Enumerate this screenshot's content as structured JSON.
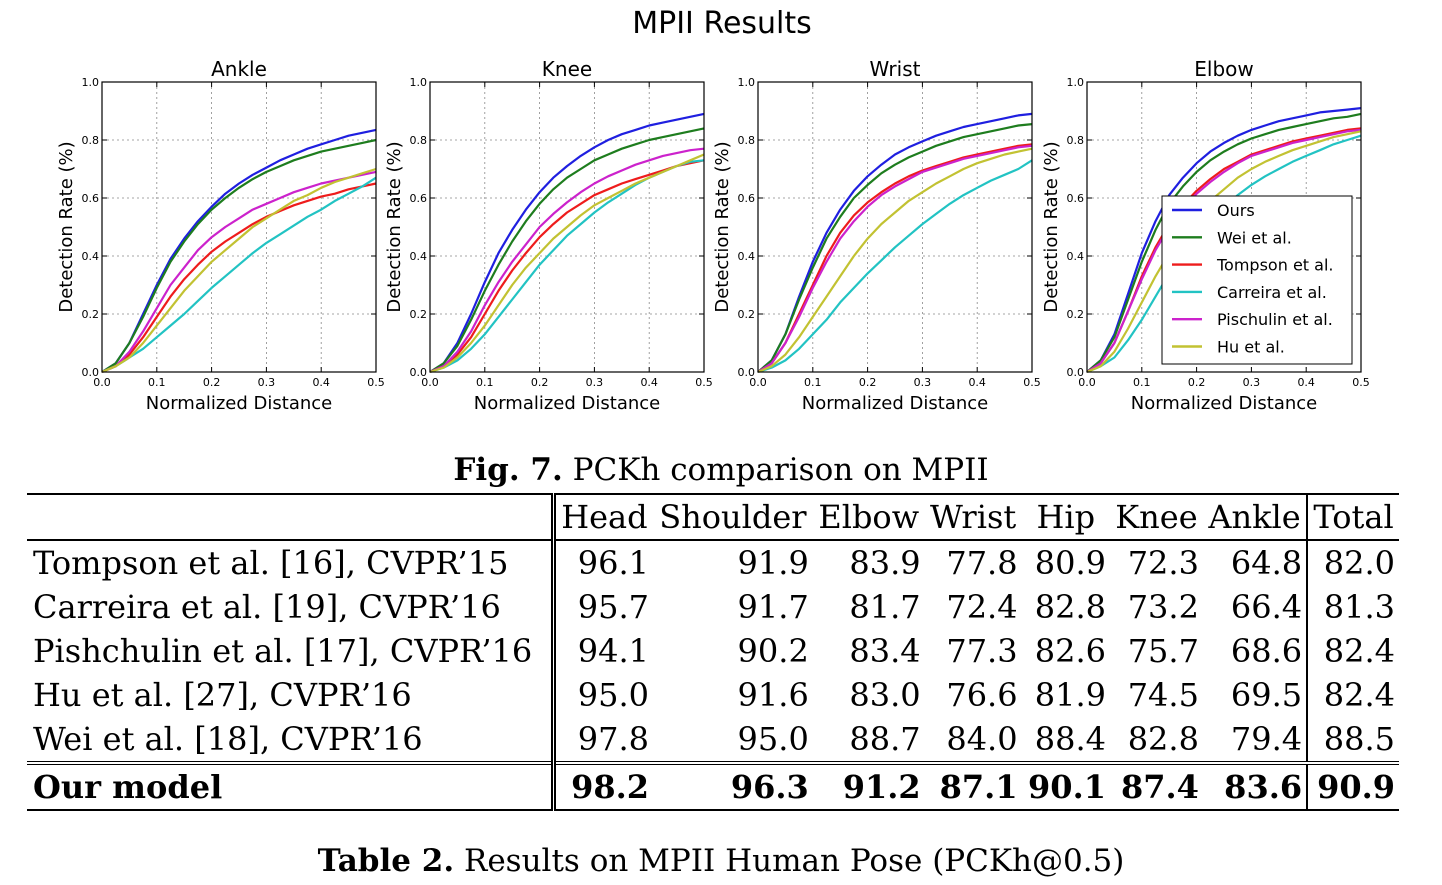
{
  "figure_title": "MPII Results",
  "chart_data": [
    {
      "type": "line",
      "title": "Ankle",
      "xlabel": "Normalized Distance",
      "ylabel": "Detection Rate (%)",
      "xlim": [
        0,
        0.5
      ],
      "ylim": [
        0,
        1.0
      ],
      "xticks": [
        "0.0",
        "0.1",
        "0.2",
        "0.3",
        "0.4",
        "0.5"
      ],
      "yticks": [
        "0.0",
        "0.2",
        "0.4",
        "0.6",
        "0.8",
        "1.0"
      ],
      "grid": true,
      "x": [
        0,
        0.025,
        0.05,
        0.075,
        0.1,
        0.125,
        0.15,
        0.175,
        0.2,
        0.225,
        0.25,
        0.275,
        0.3,
        0.325,
        0.35,
        0.375,
        0.4,
        0.425,
        0.45,
        0.475,
        0.5
      ],
      "series": [
        {
          "name": "Ours",
          "values": [
            0,
            0.03,
            0.1,
            0.2,
            0.3,
            0.39,
            0.46,
            0.52,
            0.57,
            0.615,
            0.65,
            0.68,
            0.705,
            0.73,
            0.75,
            0.77,
            0.785,
            0.8,
            0.815,
            0.825,
            0.835
          ]
        },
        {
          "name": "Wei et al.",
          "values": [
            0,
            0.03,
            0.1,
            0.19,
            0.29,
            0.38,
            0.45,
            0.51,
            0.56,
            0.6,
            0.635,
            0.665,
            0.69,
            0.71,
            0.73,
            0.745,
            0.76,
            0.77,
            0.78,
            0.79,
            0.8
          ]
        },
        {
          "name": "Tompson et al.",
          "values": [
            0,
            0.02,
            0.06,
            0.12,
            0.19,
            0.26,
            0.32,
            0.37,
            0.415,
            0.45,
            0.48,
            0.51,
            0.535,
            0.555,
            0.575,
            0.59,
            0.605,
            0.615,
            0.63,
            0.64,
            0.65
          ]
        },
        {
          "name": "Carreira et al.",
          "values": [
            0,
            0.02,
            0.05,
            0.08,
            0.12,
            0.16,
            0.2,
            0.245,
            0.29,
            0.33,
            0.37,
            0.41,
            0.445,
            0.475,
            0.505,
            0.535,
            0.56,
            0.59,
            0.615,
            0.64,
            0.67
          ]
        },
        {
          "name": "Pischulin et al.",
          "values": [
            0,
            0.02,
            0.07,
            0.14,
            0.22,
            0.3,
            0.36,
            0.42,
            0.465,
            0.5,
            0.53,
            0.56,
            0.58,
            0.6,
            0.62,
            0.635,
            0.65,
            0.66,
            0.67,
            0.68,
            0.69
          ]
        },
        {
          "name": "Hu et al.",
          "values": [
            0,
            0.02,
            0.05,
            0.1,
            0.16,
            0.22,
            0.28,
            0.33,
            0.38,
            0.42,
            0.46,
            0.5,
            0.53,
            0.56,
            0.59,
            0.61,
            0.635,
            0.655,
            0.67,
            0.685,
            0.7
          ]
        }
      ]
    },
    {
      "type": "line",
      "title": "Knee",
      "xlabel": "Normalized Distance",
      "ylabel": "Detection Rate (%)",
      "xlim": [
        0,
        0.5
      ],
      "ylim": [
        0,
        1.0
      ],
      "xticks": [
        "0.0",
        "0.1",
        "0.2",
        "0.3",
        "0.4",
        "0.5"
      ],
      "yticks": [
        "0.0",
        "0.2",
        "0.4",
        "0.6",
        "0.8",
        "1.0"
      ],
      "grid": true,
      "x": [
        0,
        0.025,
        0.05,
        0.075,
        0.1,
        0.125,
        0.15,
        0.175,
        0.2,
        0.225,
        0.25,
        0.275,
        0.3,
        0.325,
        0.35,
        0.375,
        0.4,
        0.425,
        0.45,
        0.475,
        0.5
      ],
      "series": [
        {
          "name": "Ours",
          "values": [
            0,
            0.03,
            0.1,
            0.2,
            0.31,
            0.41,
            0.49,
            0.56,
            0.62,
            0.67,
            0.71,
            0.745,
            0.775,
            0.8,
            0.82,
            0.835,
            0.85,
            0.86,
            0.87,
            0.88,
            0.89
          ]
        },
        {
          "name": "Wei et al.",
          "values": [
            0,
            0.03,
            0.09,
            0.18,
            0.28,
            0.37,
            0.45,
            0.52,
            0.58,
            0.63,
            0.67,
            0.7,
            0.73,
            0.75,
            0.77,
            0.785,
            0.8,
            0.81,
            0.82,
            0.83,
            0.84
          ]
        },
        {
          "name": "Tompson et al.",
          "values": [
            0,
            0.02,
            0.06,
            0.12,
            0.2,
            0.28,
            0.35,
            0.41,
            0.465,
            0.51,
            0.55,
            0.58,
            0.61,
            0.63,
            0.65,
            0.665,
            0.68,
            0.695,
            0.71,
            0.72,
            0.73
          ]
        },
        {
          "name": "Carreira et al.",
          "values": [
            0,
            0.015,
            0.04,
            0.08,
            0.13,
            0.19,
            0.25,
            0.31,
            0.37,
            0.42,
            0.47,
            0.51,
            0.55,
            0.585,
            0.615,
            0.645,
            0.67,
            0.69,
            0.71,
            0.725,
            0.73
          ]
        },
        {
          "name": "Pischulin et al.",
          "values": [
            0,
            0.02,
            0.07,
            0.14,
            0.23,
            0.31,
            0.38,
            0.44,
            0.5,
            0.545,
            0.585,
            0.62,
            0.65,
            0.675,
            0.695,
            0.715,
            0.73,
            0.745,
            0.755,
            0.765,
            0.77
          ]
        },
        {
          "name": "Hu et al.",
          "values": [
            0,
            0.015,
            0.05,
            0.1,
            0.16,
            0.23,
            0.3,
            0.36,
            0.41,
            0.46,
            0.5,
            0.54,
            0.575,
            0.6,
            0.625,
            0.65,
            0.67,
            0.69,
            0.71,
            0.73,
            0.75
          ]
        }
      ]
    },
    {
      "type": "line",
      "title": "Wrist",
      "xlabel": "Normalized Distance",
      "ylabel": "Detection Rate (%)",
      "xlim": [
        0,
        0.5
      ],
      "ylim": [
        0,
        1.0
      ],
      "xticks": [
        "0.0",
        "0.1",
        "0.2",
        "0.3",
        "0.4",
        "0.5"
      ],
      "yticks": [
        "0.0",
        "0.2",
        "0.4",
        "0.6",
        "0.8",
        "1.0"
      ],
      "grid": true,
      "x": [
        0,
        0.025,
        0.05,
        0.075,
        0.1,
        0.125,
        0.15,
        0.175,
        0.2,
        0.225,
        0.25,
        0.275,
        0.3,
        0.325,
        0.35,
        0.375,
        0.4,
        0.425,
        0.45,
        0.475,
        0.5
      ],
      "series": [
        {
          "name": "Ours",
          "values": [
            0,
            0.04,
            0.13,
            0.26,
            0.38,
            0.48,
            0.56,
            0.625,
            0.675,
            0.715,
            0.75,
            0.775,
            0.795,
            0.815,
            0.83,
            0.845,
            0.855,
            0.865,
            0.875,
            0.885,
            0.89
          ]
        },
        {
          "name": "Wei et al.",
          "values": [
            0,
            0.04,
            0.13,
            0.25,
            0.36,
            0.46,
            0.535,
            0.6,
            0.645,
            0.685,
            0.715,
            0.74,
            0.76,
            0.78,
            0.795,
            0.81,
            0.82,
            0.83,
            0.84,
            0.85,
            0.855
          ]
        },
        {
          "name": "Tompson et al.",
          "values": [
            0,
            0.03,
            0.1,
            0.2,
            0.3,
            0.4,
            0.48,
            0.54,
            0.585,
            0.62,
            0.65,
            0.675,
            0.695,
            0.71,
            0.725,
            0.74,
            0.75,
            0.76,
            0.77,
            0.78,
            0.785
          ]
        },
        {
          "name": "Carreira et al.",
          "values": [
            0,
            0.015,
            0.04,
            0.08,
            0.13,
            0.18,
            0.24,
            0.29,
            0.34,
            0.385,
            0.43,
            0.47,
            0.51,
            0.545,
            0.58,
            0.61,
            0.635,
            0.66,
            0.68,
            0.7,
            0.73
          ]
        },
        {
          "name": "Pischulin et al.",
          "values": [
            0,
            0.03,
            0.1,
            0.19,
            0.29,
            0.38,
            0.46,
            0.52,
            0.57,
            0.61,
            0.64,
            0.665,
            0.69,
            0.705,
            0.72,
            0.735,
            0.745,
            0.755,
            0.765,
            0.775,
            0.78
          ]
        },
        {
          "name": "Hu et al.",
          "values": [
            0,
            0.02,
            0.06,
            0.12,
            0.19,
            0.26,
            0.33,
            0.4,
            0.46,
            0.51,
            0.55,
            0.59,
            0.62,
            0.65,
            0.675,
            0.7,
            0.72,
            0.735,
            0.75,
            0.76,
            0.77
          ]
        }
      ]
    },
    {
      "type": "line",
      "title": "Elbow",
      "xlabel": "Normalized Distance",
      "ylabel": "Detection Rate (%)",
      "xlim": [
        0,
        0.5
      ],
      "ylim": [
        0,
        1.0
      ],
      "xticks": [
        "0.0",
        "0.1",
        "0.2",
        "0.3",
        "0.4",
        "0.5"
      ],
      "yticks": [
        "0.0",
        "0.2",
        "0.4",
        "0.6",
        "0.8",
        "1.0"
      ],
      "grid": true,
      "legend": "center-right",
      "x": [
        0,
        0.025,
        0.05,
        0.075,
        0.1,
        0.125,
        0.15,
        0.175,
        0.2,
        0.225,
        0.25,
        0.275,
        0.3,
        0.325,
        0.35,
        0.375,
        0.4,
        0.425,
        0.45,
        0.475,
        0.5
      ],
      "series": [
        {
          "name": "Ours",
          "values": [
            0,
            0.04,
            0.13,
            0.27,
            0.41,
            0.52,
            0.61,
            0.67,
            0.72,
            0.76,
            0.79,
            0.815,
            0.835,
            0.85,
            0.865,
            0.875,
            0.885,
            0.895,
            0.9,
            0.905,
            0.91
          ]
        },
        {
          "name": "Wei et al.",
          "values": [
            0,
            0.04,
            0.12,
            0.25,
            0.38,
            0.49,
            0.58,
            0.64,
            0.69,
            0.73,
            0.76,
            0.785,
            0.805,
            0.82,
            0.835,
            0.845,
            0.855,
            0.865,
            0.875,
            0.88,
            0.89
          ]
        },
        {
          "name": "Tompson et al.",
          "values": [
            0,
            0.03,
            0.1,
            0.21,
            0.33,
            0.43,
            0.51,
            0.575,
            0.625,
            0.665,
            0.7,
            0.725,
            0.75,
            0.765,
            0.78,
            0.795,
            0.805,
            0.815,
            0.825,
            0.835,
            0.84
          ]
        },
        {
          "name": "Carreira et al.",
          "values": [
            0,
            0.02,
            0.05,
            0.11,
            0.18,
            0.26,
            0.34,
            0.41,
            0.47,
            0.52,
            0.57,
            0.61,
            0.645,
            0.675,
            0.7,
            0.725,
            0.745,
            0.765,
            0.785,
            0.8,
            0.815
          ]
        },
        {
          "name": "Pischulin et al.",
          "values": [
            0,
            0.03,
            0.1,
            0.21,
            0.32,
            0.42,
            0.5,
            0.565,
            0.615,
            0.655,
            0.69,
            0.72,
            0.745,
            0.76,
            0.775,
            0.79,
            0.8,
            0.81,
            0.82,
            0.83,
            0.835
          ]
        },
        {
          "name": "Hu et al.",
          "values": [
            0,
            0.02,
            0.07,
            0.15,
            0.24,
            0.33,
            0.41,
            0.48,
            0.54,
            0.59,
            0.63,
            0.67,
            0.7,
            0.725,
            0.745,
            0.765,
            0.78,
            0.795,
            0.81,
            0.82,
            0.83
          ]
        }
      ]
    }
  ],
  "series_colors": {
    "Ours": "#1f1fe0",
    "Wei et al.": "#1e7d1e",
    "Tompson et al.": "#ee1c1c",
    "Carreira et al.": "#22c3c3",
    "Pischulin et al.": "#cc22cc",
    "Hu et al.": "#c2c232"
  },
  "fig_caption": {
    "label": "Fig. 7.",
    "text": " PCKh comparison on MPII"
  },
  "table": {
    "columns": [
      "Head",
      "Shoulder",
      "Elbow",
      "Wrist",
      "Hip",
      "Knee",
      "Ankle"
    ],
    "total_label": "Total",
    "rows": [
      {
        "method": "Tompson et al. [16], CVPR’15",
        "values": [
          "96.1",
          "91.9",
          "83.9",
          "77.8",
          "80.9",
          "72.3",
          "64.8"
        ],
        "total": "82.0"
      },
      {
        "method": "Carreira et al. [19], CVPR’16",
        "values": [
          "95.7",
          "91.7",
          "81.7",
          "72.4",
          "82.8",
          "73.2",
          "66.4"
        ],
        "total": "81.3"
      },
      {
        "method": "Pishchulin et al. [17], CVPR’16",
        "values": [
          "94.1",
          "90.2",
          "83.4",
          "77.3",
          "82.6",
          "75.7",
          "68.6"
        ],
        "total": "82.4"
      },
      {
        "method": "Hu et al. [27], CVPR’16",
        "values": [
          "95.0",
          "91.6",
          "83.0",
          "76.6",
          "81.9",
          "74.5",
          "69.5"
        ],
        "total": "82.4"
      },
      {
        "method": "Wei et al. [18], CVPR’16",
        "values": [
          "97.8",
          "95.0",
          "88.7",
          "84.0",
          "88.4",
          "82.8",
          "79.4"
        ],
        "total": "88.5"
      }
    ],
    "ours": {
      "method": "Our model",
      "values": [
        "98.2",
        "96.3",
        "91.2",
        "87.1",
        "90.1",
        "87.4",
        "83.6"
      ],
      "total": "90.9"
    }
  },
  "table_caption": {
    "label": "Table 2.",
    "text": " Results on MPII Human Pose (PCKh@0.5)"
  }
}
